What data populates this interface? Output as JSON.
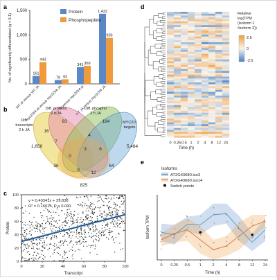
{
  "panel_letters": {
    "a": "a",
    "b": "b",
    "c": "c",
    "d": "d",
    "e": "e"
  },
  "colors": {
    "blue": "#5b87c5",
    "orange": "#ef9a3c",
    "scatter_line": "#1f5e99",
    "venn_yellow": "#e8d24a",
    "venn_pink": "#e58ab2",
    "venn_green": "#8fc05a",
    "venn_blue": "#6fa8d8",
    "venn_orange": "#f2a24e"
  },
  "chart_data": [
    {
      "panel": "a",
      "type": "bar",
      "categories": [
        "WT at versus WT JA",
        "myc2/3/4 at versus myc2/3/4 JA",
        "WT at versus myc2/3/4 at",
        "WT JA versus myc2/3/4 JA"
      ],
      "series": [
        {
          "name": "Protein",
          "values": [
            161,
            79,
            341,
            1432
          ]
        },
        {
          "name": "Phosphopeptide",
          "values": [
            443,
            93,
            369,
            939
          ]
        }
      ],
      "value_labels": [
        [
          "161",
          "79",
          "341",
          "1,432"
        ],
        [
          "443",
          "93",
          "369",
          "939"
        ]
      ],
      "ylabel": "No. of significantly differentiated (q < 0.1)",
      "ylim": [
        0,
        1500
      ],
      "yticks": [
        "0",
        "500",
        "1,000",
        "1,500"
      ],
      "legend": "top-right"
    },
    {
      "panel": "b",
      "type": "venn",
      "set_labels": [
        "Diff. transcripts 2 h JA",
        "Diff. proteins 2 h JA",
        "Diff. phospho 2 h JA",
        "MYC2/3 targets"
      ],
      "region_counts": [
        "16",
        "93",
        "184",
        "1,656",
        "5,484",
        "7",
        "4",
        "0",
        "3",
        "6",
        "36",
        "64",
        "0",
        "12",
        "825"
      ]
    },
    {
      "panel": "c",
      "type": "scatter",
      "xlabel": "Transcript",
      "ylabel": "Protein",
      "xlim": [
        0,
        100
      ],
      "ylim": [
        0,
        100
      ],
      "xticks": [
        "0",
        "20",
        "40",
        "60",
        "80",
        "100"
      ],
      "yticks": [
        "0",
        "20",
        "40",
        "60",
        "80",
        "100"
      ],
      "fit": {
        "slope": 0.40341,
        "intercept": 29.838
      },
      "annotation": [
        "y = 0.40341x + 29.838",
        "R² = 0.16015, P < 0.001"
      ]
    },
    {
      "panel": "d",
      "type": "heatmap",
      "xlabel": "Time (h)",
      "columns": [
        "0",
        "0.25",
        "0.5",
        "1",
        "2",
        "4",
        "8",
        "12",
        "24"
      ],
      "legend_title": "Relative log(TPM (isoform 1 /isoform 2))",
      "scale_ticks": [
        "2.5",
        "0",
        "-2.5"
      ],
      "range": [
        -2.5,
        2.5
      ]
    },
    {
      "panel": "e",
      "type": "line",
      "xlabel": "Time (h)",
      "ylabel": "Isoform TPM",
      "x": [
        "0",
        "0.25",
        "0.5",
        "1",
        "2",
        "4",
        "8",
        "12",
        "24"
      ],
      "series": [
        {
          "name": "AT2G43680.iso3",
          "values": [
            0.42,
            0.38,
            0.55,
            0.54,
            0.7,
            0.72,
            0.48,
            0.26,
            0.46
          ]
        },
        {
          "name": "AT2G43680.iso14",
          "values": [
            0.3,
            0.4,
            0.46,
            0.3,
            0.14,
            0.2,
            0.36,
            0.52,
            0.6
          ]
        }
      ],
      "legend_title": "Isoforms",
      "switch_points_label": "Switch points",
      "switch_points": [
        {
          "x": "1",
          "y": 0.42
        },
        {
          "x": "12",
          "y": 0.38
        }
      ],
      "yrange": [
        0,
        1
      ]
    }
  ]
}
